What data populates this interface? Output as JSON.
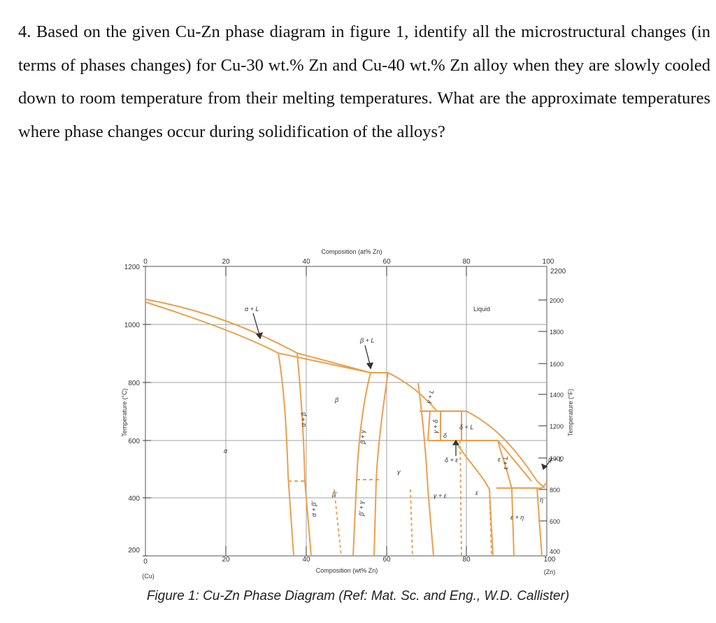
{
  "question": {
    "text": "4. Based on the given Cu-Zn phase diagram in figure 1, identify all the microstructural changes (in terms of phases changes) for Cu-30 wt.% Zn and Cu-40 wt.% Zn alloy when they are slowly cooled down to room temperature from their melting temperatures. What are the approximate temperatures where phase changes occur during solidification of the alloys?"
  },
  "figure": {
    "caption": "Figure 1: Cu-Zn Phase Diagram (Ref: Mat. Sc. and Eng., W.D. Callister)",
    "top_axis_title": "Composition (at% Zn)",
    "bottom_axis_title": "Composition (wt% Zn)",
    "left_axis_title": "Temperature (°C)",
    "right_axis_title": "Temperature (°F)",
    "top_ticks": [
      "0",
      "20",
      "40",
      "60",
      "80",
      "100"
    ],
    "bottom_ticks": [
      "0",
      "20",
      "40",
      "60",
      "80",
      "100"
    ],
    "bottom_end_labels": {
      "left": "(Cu)",
      "right": "(Zn)"
    },
    "left_ticks": [
      "1200",
      "1000",
      "800",
      "600",
      "400",
      "200"
    ],
    "right_ticks": [
      "2200",
      "2000",
      "1800",
      "1600",
      "1400",
      "1200",
      "1000",
      "800",
      "600",
      "400"
    ],
    "phase_labels": {
      "liquid": "Liquid",
      "alpha_plus_L": "α + L",
      "beta_plus_L": "β + L",
      "alpha": "α",
      "beta": "β",
      "beta_prime": "β'",
      "gamma": "γ",
      "epsilon": "ε",
      "eta": "η",
      "delta": "δ",
      "alpha_beta": "α + β",
      "alpha_beta_prime": "α + β'",
      "beta_gamma": "β + γ",
      "beta_prime_gamma": "β' + γ",
      "gamma_L": "γ + L",
      "gamma_delta": "γ + δ",
      "delta_L": "δ + L",
      "delta_eps": "δ + ε",
      "gamma_eps": "γ + ε",
      "eps_L": "ε + L",
      "eps_eta": "ε + η",
      "eta_L": "η + L"
    },
    "colors": {
      "phase_line": "#ec9f4c",
      "grid": "#9a9a9a",
      "axis": "#333333"
    }
  }
}
